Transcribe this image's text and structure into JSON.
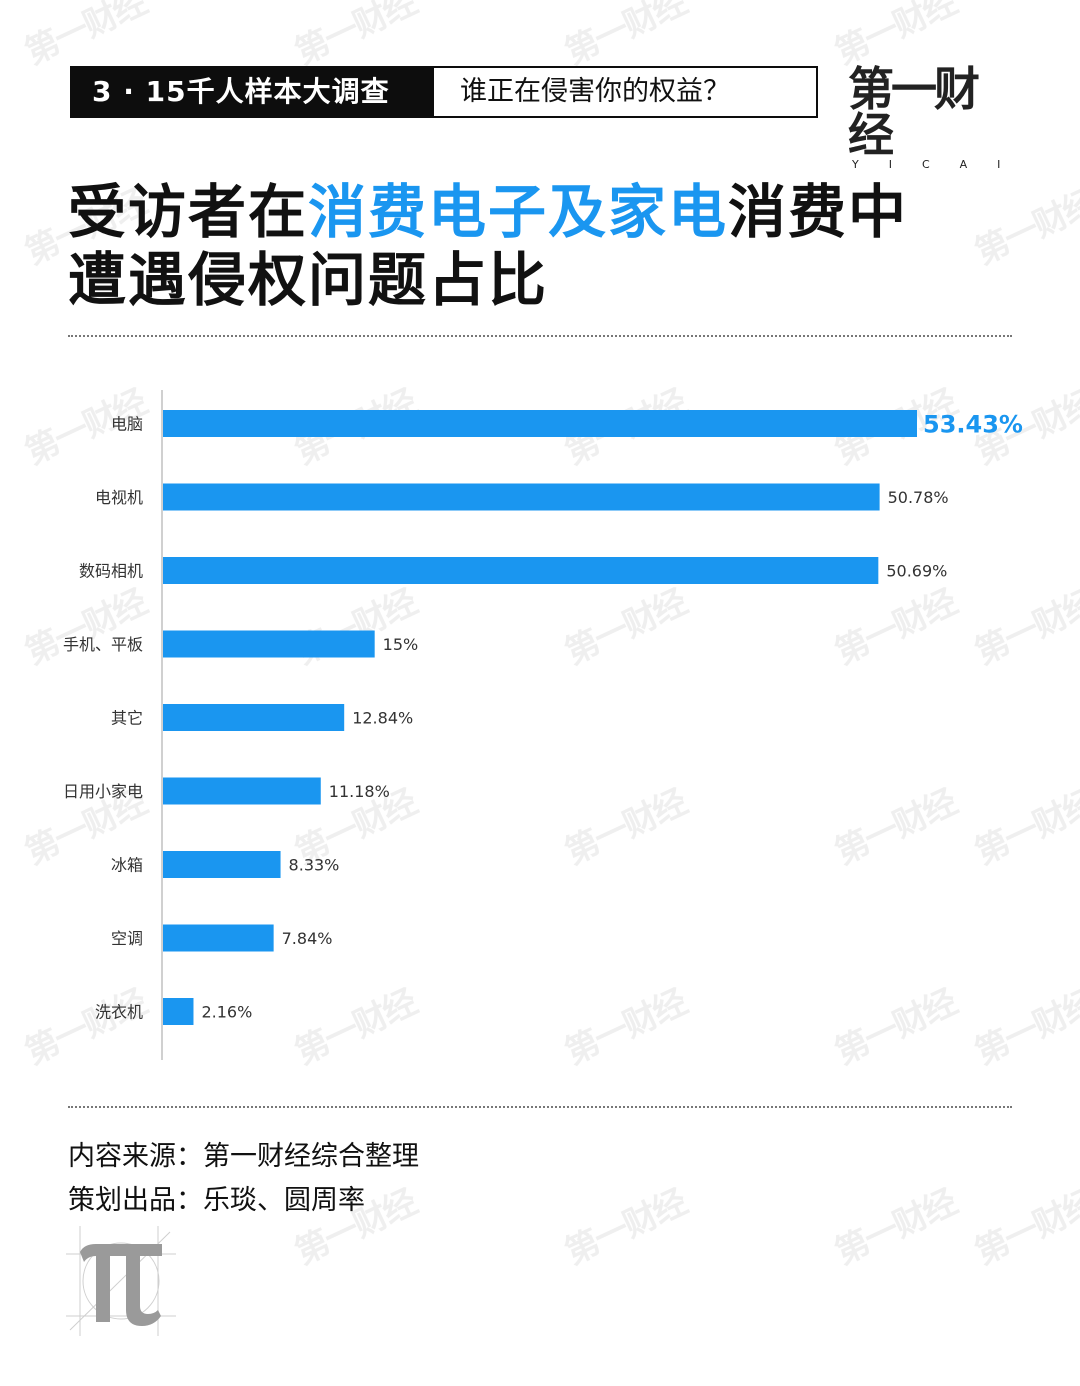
{
  "header": {
    "badge": "3 · 15千人样本大调查",
    "subtitle": "谁正在侵害你的权益？"
  },
  "logo": {
    "main": "第一财经",
    "sub": "YICAI"
  },
  "title": {
    "part1": "受访者在",
    "highlight": "消费电子及家电",
    "part2": "消费中",
    "line2": "遭遇侵权问题占比"
  },
  "watermark": "第一财经",
  "chart_data": {
    "type": "bar",
    "orientation": "horizontal",
    "categories": [
      "电脑",
      "电视机",
      "数码相机",
      "手机、平板",
      "其它",
      "日用小家电",
      "冰箱",
      "空调",
      "洗衣机"
    ],
    "values": [
      53.43,
      50.78,
      50.69,
      15,
      12.84,
      11.18,
      8.33,
      7.84,
      2.16
    ],
    "value_labels": [
      "53.43%",
      "50.78%",
      "50.69%",
      "15%",
      "12.84%",
      "11.18%",
      "8.33%",
      "7.84%",
      "2.16%"
    ],
    "highlight_index": 0,
    "xlim": [
      0,
      60
    ],
    "grid": false,
    "colors": {
      "bar": "#1a96f0",
      "highlight_label": "#1a96f0",
      "label": "#333333"
    }
  },
  "footer": {
    "source_label": "内容来源：",
    "source_value": "第一财经综合整理",
    "credit_label": "策划出品：",
    "credit_value": "乐琰、圆周率"
  }
}
